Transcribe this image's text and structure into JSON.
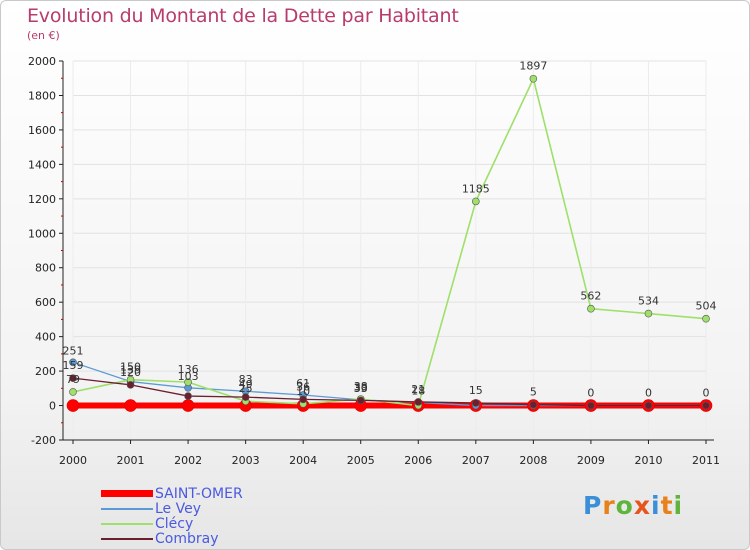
{
  "title": "Evolution du Montant de la Dette par Habitant",
  "subtitle": "(en €)",
  "logo": "Proxiti",
  "chart_data": {
    "type": "line",
    "title": "Evolution du Montant de la Dette par Habitant",
    "ylabel": "(en €)",
    "xlabel": "",
    "categories": [
      "2000",
      "2001",
      "2002",
      "2003",
      "2004",
      "2005",
      "2006",
      "2007",
      "2008",
      "2009",
      "2010",
      "2011"
    ],
    "ylim": [
      -200,
      2000
    ],
    "yticks": [
      -200,
      0,
      200,
      400,
      600,
      800,
      1000,
      1200,
      1400,
      1600,
      1800,
      2000
    ],
    "series": [
      {
        "name": "SAINT-OMER",
        "color": "#ff0000",
        "values": [
          0,
          0,
          0,
          0,
          0,
          0,
          0,
          0,
          0,
          0,
          0,
          0
        ]
      },
      {
        "name": "Le Vey",
        "color": "#5b9bd5",
        "values": [
          251,
          139,
          103,
          83,
          61,
          33,
          18,
          0,
          0,
          0,
          0,
          0
        ]
      },
      {
        "name": "Clécy",
        "color": "#9ee06a",
        "values": [
          79,
          150,
          136,
          25,
          10,
          38,
          0,
          1185,
          1897,
          562,
          534,
          504
        ]
      },
      {
        "name": "Combray",
        "color": "#6b2030",
        "values": [
          159,
          120,
          55,
          49,
          36,
          30,
          21,
          15,
          5,
          0,
          0,
          0
        ]
      }
    ],
    "data_labels": {
      "Le Vey": [
        "251",
        "139",
        "103",
        "83",
        "61",
        "33",
        "18",
        "",
        "",
        "",
        "",
        ""
      ],
      "Clécy": [
        "79",
        "150",
        "136",
        "25",
        "10",
        "38",
        "",
        "1185",
        "1897",
        "562",
        "534",
        "504"
      ],
      "Combray": [
        "159",
        "120",
        "",
        "49",
        "36",
        "30",
        "21",
        "15",
        "5",
        "0",
        "0",
        "0"
      ]
    }
  }
}
